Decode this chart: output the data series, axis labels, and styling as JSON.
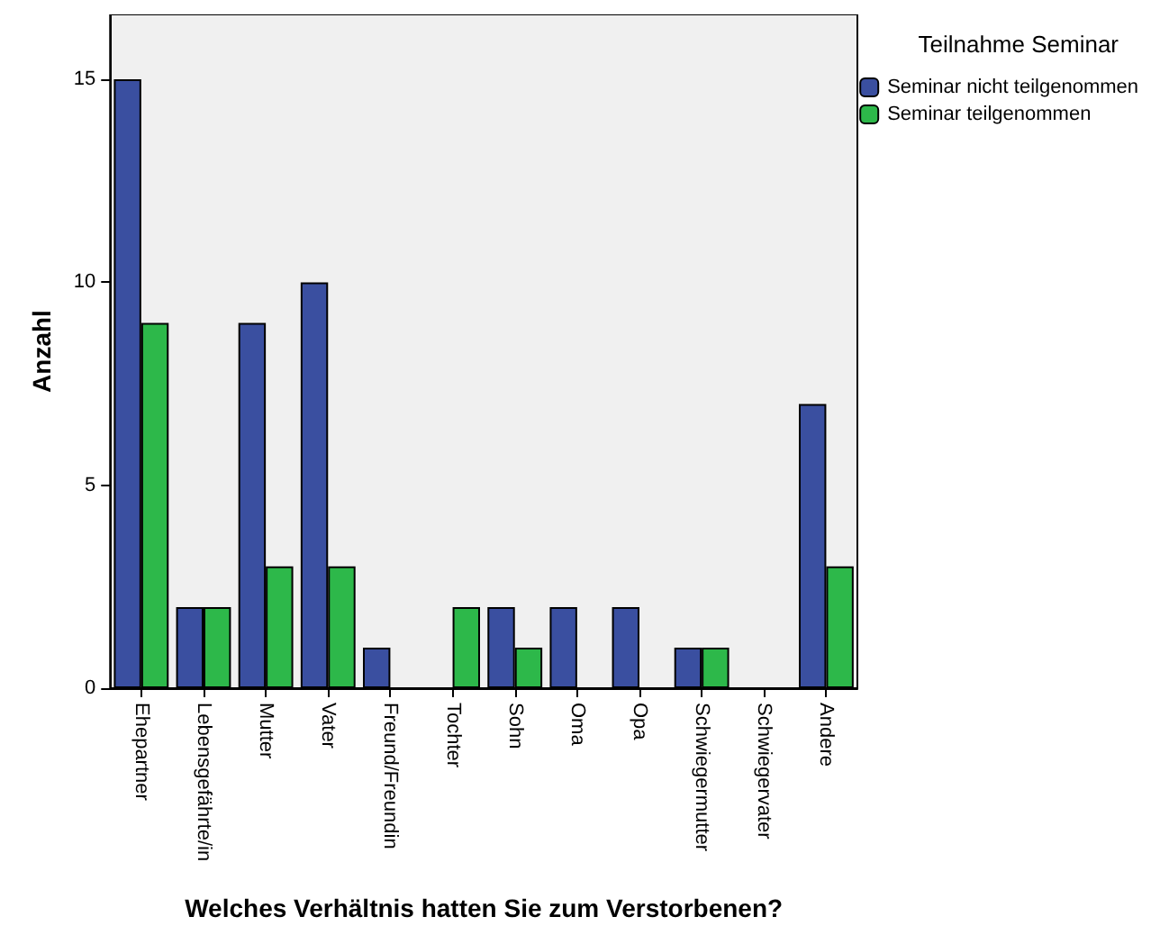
{
  "chart_data": {
    "type": "bar",
    "xlabel": "Welches Verhältnis hatten Sie zum Verstorbenen?",
    "ylabel": "Anzahl",
    "legend_title": "Teilnahme Seminar",
    "legend": "right",
    "categories": [
      "Ehepartner",
      "Lebensgefährte/in",
      "Mutter",
      "Vater",
      "Freund/Freundin",
      "Tochter",
      "Sohn",
      "Oma",
      "Opa",
      "Schwiegermutter",
      "Schwiegervater",
      "Andere"
    ],
    "series": [
      {
        "name": "Seminar nicht teilgenommen",
        "color": "#3a4fa0",
        "values": [
          15,
          2,
          9,
          10,
          1,
          0,
          2,
          2,
          2,
          1,
          0,
          7
        ]
      },
      {
        "name": "Seminar teilgenommen",
        "color": "#2db84a",
        "values": [
          9,
          2,
          3,
          3,
          0,
          2,
          1,
          0,
          0,
          1,
          0,
          3
        ]
      }
    ],
    "ylim": [
      0,
      16.6
    ],
    "yticks": [
      0,
      5,
      10,
      15
    ]
  }
}
